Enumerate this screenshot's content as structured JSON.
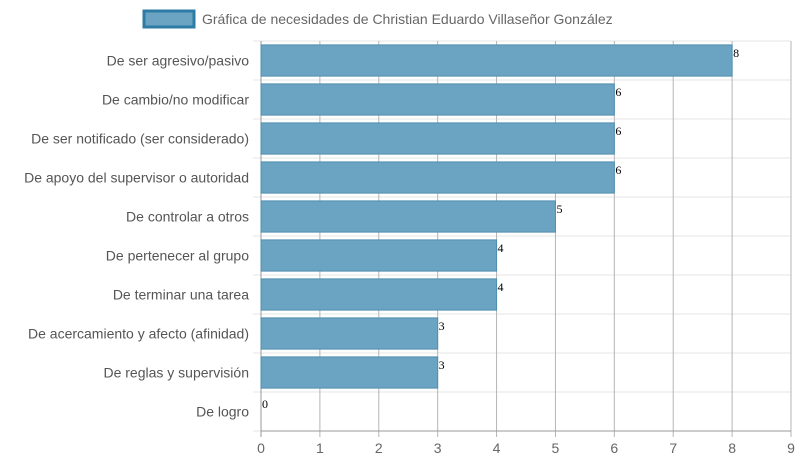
{
  "chart_data": {
    "type": "bar",
    "orientation": "horizontal",
    "legend": {
      "label": "Gráfica de necesidades de Christian Eduardo Villaseñor González",
      "position": "top"
    },
    "categories": [
      "De ser agresivo/pasivo",
      "De cambio/no modificar",
      "De ser notificado (ser considerado)",
      "De apoyo del supervisor o autoridad",
      "De controlar a otros",
      "De pertenecer al grupo",
      "De terminar una tarea",
      "De acercamiento y afecto (afinidad)",
      "De reglas y supervisión",
      "De logro"
    ],
    "values": [
      8,
      6,
      6,
      6,
      5,
      4,
      4,
      3,
      3,
      0
    ],
    "xlim": [
      0,
      9
    ],
    "xticks": [
      0,
      1,
      2,
      3,
      4,
      5,
      6,
      7,
      8,
      9
    ],
    "grid": true,
    "colors": {
      "bar_fill": "#6ba4c2",
      "bar_stroke": "#4f8eb0",
      "legend_fill": "#6ba4c2",
      "legend_stroke": "#2e7ba6",
      "grid_vertical": "#b5b5b5",
      "grid_horizontal": "#e5e5e5",
      "axis": "#9a9a9a"
    }
  }
}
